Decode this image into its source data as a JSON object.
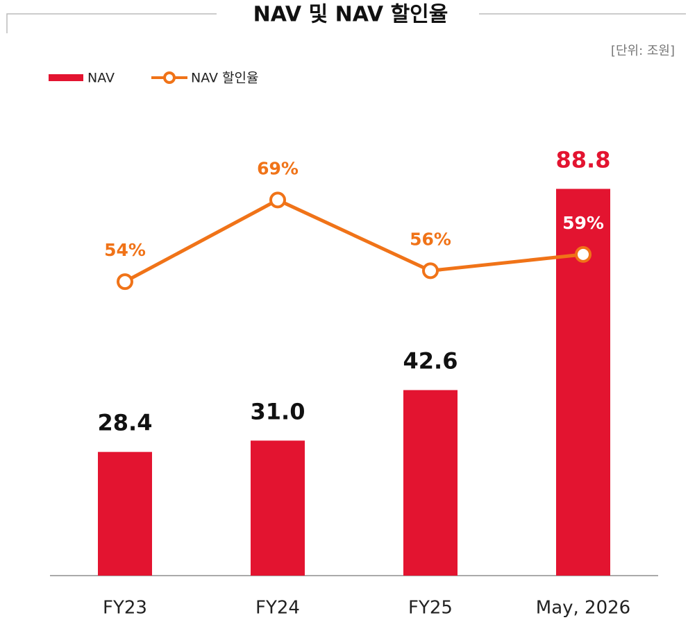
{
  "chart_data": {
    "type": "bar_line",
    "title": "NAV 및 NAV 할인율",
    "unit_note": "[단위: 조원]",
    "categories": [
      "FY23",
      "FY24",
      "FY25",
      "May, 2026"
    ],
    "series": [
      {
        "name": "NAV",
        "type": "bar",
        "color": "#e31430",
        "values": [
          28.4,
          31.0,
          42.6,
          88.8
        ],
        "value_labels": [
          "28.4",
          "31.0",
          "42.6",
          "88.8"
        ]
      },
      {
        "name": "NAV 할인율",
        "type": "line",
        "axis": "y2",
        "color": "#f07318",
        "values": [
          54,
          69,
          56,
          59
        ],
        "value_labels": [
          "54%",
          "69%",
          "56%",
          "59%"
        ]
      }
    ],
    "ylim": [
      0,
      100
    ],
    "y2lim": [
      0,
      80
    ]
  }
}
